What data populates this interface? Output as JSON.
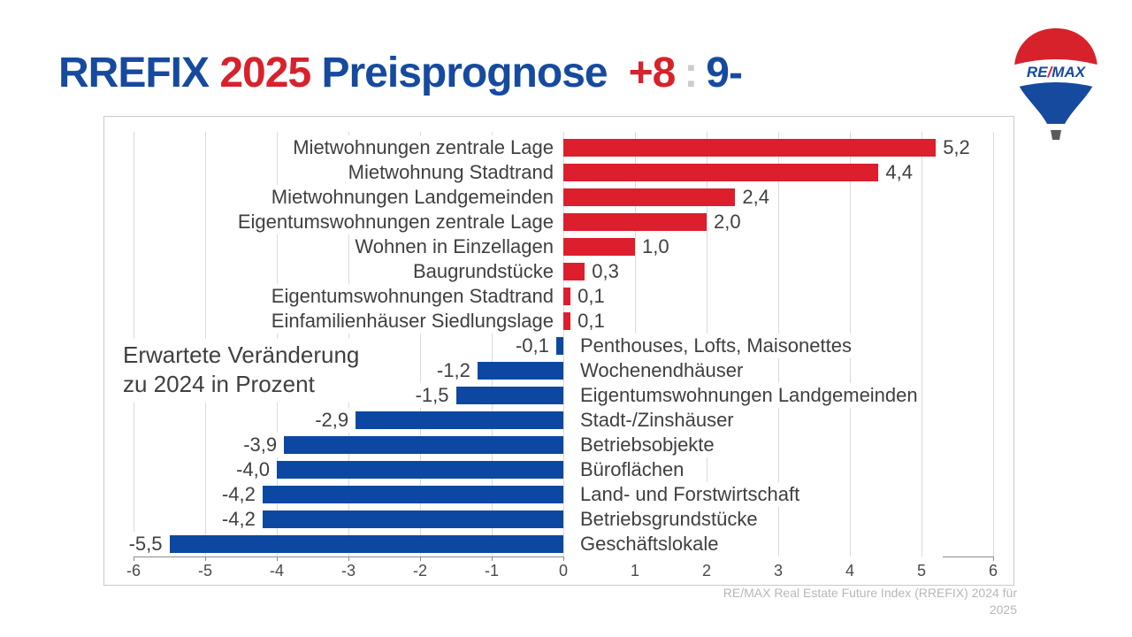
{
  "title": {
    "brand": "RREFIX",
    "year": "2025",
    "label": "Preisprognose",
    "score_plus": "+8",
    "score_colon": ":",
    "score_minus": "9-"
  },
  "logo": {
    "re": "RE",
    "slash": "/",
    "max": "MAX"
  },
  "annotation": {
    "line1": "Erwartete Veränderung",
    "line2": "zu 2024 in Prozent"
  },
  "footer": {
    "line1": "RE/MAX Real Estate Future Index (RREFIX) 2024 für",
    "line2": "2025"
  },
  "colors": {
    "title_blue": "#164A9F",
    "title_red": "#D7222C",
    "colon_gray": "#C9CDD2",
    "bar_red": "#DC1E2D",
    "bar_blue": "#0C48A2",
    "label_gray": "#3F3F3F",
    "gridline": "#DADADA",
    "axis": "#8C8C8C",
    "frame_border": "#C9C9C9",
    "footer_gray": "#B7B7B7"
  },
  "chart_data": {
    "type": "bar",
    "orientation": "horizontal",
    "title": "RREFIX 2025 Preisprognose",
    "xlabel": "Erwartete Veränderung zu 2024 in Prozent",
    "xlim": [
      -6,
      6
    ],
    "x_ticks": [
      -6,
      -5,
      -4,
      -3,
      -2,
      -1,
      0,
      1,
      2,
      3,
      4,
      5,
      6
    ],
    "grid": true,
    "legend": false,
    "categories": [
      "Mietwohnungen zentrale Lage",
      "Mietwohnung Stadtrand",
      "Mietwohnungen Landgemeinden",
      "Eigentumswohnungen zentrale Lage",
      "Wohnen in Einzellagen",
      "Baugrundstücke",
      "Eigentumswohnungen Stadtrand",
      "Einfamilienhäuser Siedlungslage",
      "Penthouses, Lofts, Maisonettes",
      "Wochenendhäuser",
      "Eigentumswohnungen Landgemeinden",
      "Stadt-/Zinshäuser",
      "Betriebsobjekte",
      "Büroflächen",
      "Land- und Forstwirtschaft",
      "Betriebsgrundstücke",
      "Geschäftslokale"
    ],
    "values": [
      5.2,
      4.4,
      2.4,
      2.0,
      1.0,
      0.3,
      0.1,
      0.1,
      -0.1,
      -1.2,
      -1.5,
      -2.9,
      -3.9,
      -4.0,
      -4.2,
      -4.2,
      -5.5
    ],
    "value_labels": [
      "5,2",
      "4,4",
      "2,4",
      "2,0",
      "1,0",
      "0,3",
      "0,1",
      "0,1",
      "-0,1",
      "-1,2",
      "-1,5",
      "-2,9",
      "-3,9",
      "-4,0",
      "-4,2",
      "-4,2",
      "-5,5"
    ],
    "positive_color": "#DC1E2D",
    "negative_color": "#0C48A2"
  }
}
